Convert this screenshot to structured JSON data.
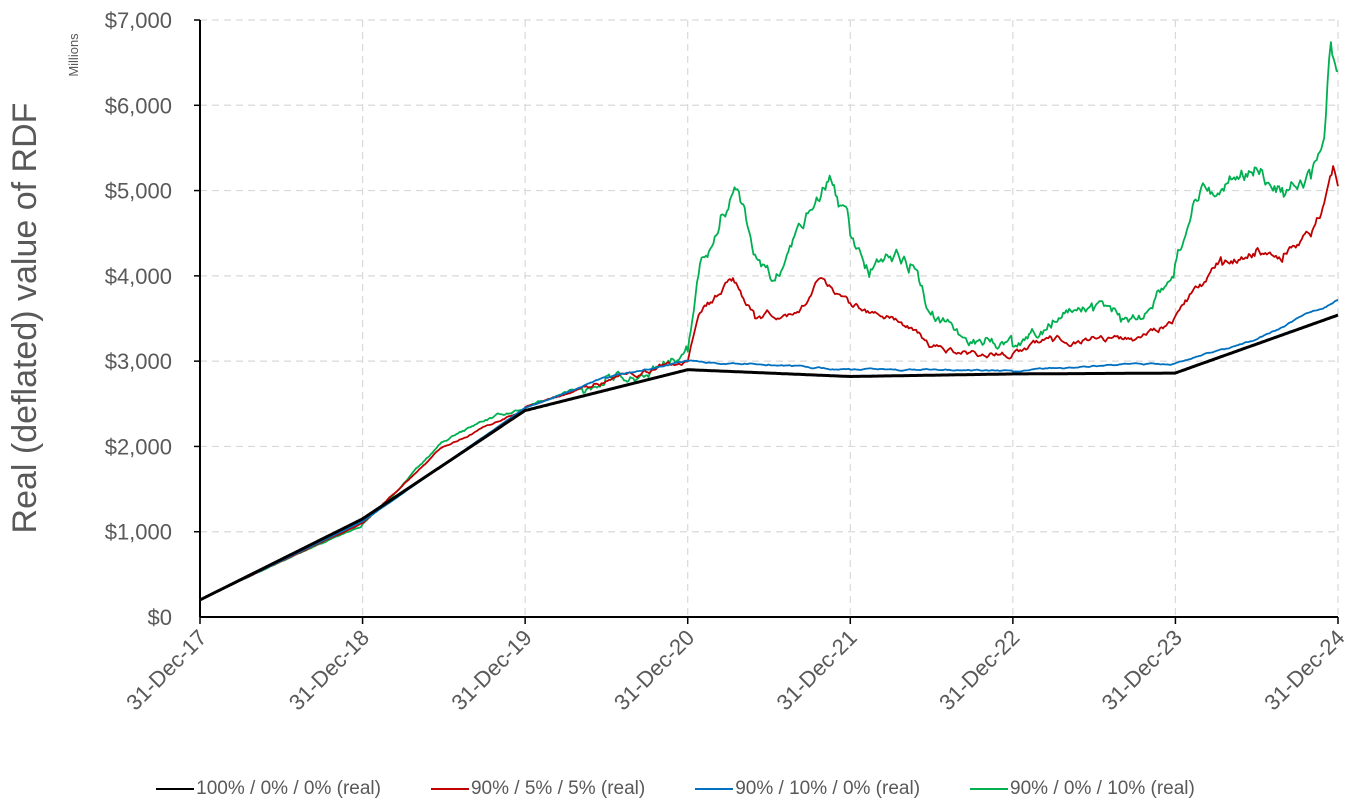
{
  "chart_data": {
    "type": "line",
    "title": "",
    "ylabel": "Real (deflated) value of RDF",
    "y_units_label": "Millions",
    "xlabel": "",
    "x_ticks": [
      "31-Dec-17",
      "31-Dec-18",
      "31-Dec-19",
      "31-Dec-20",
      "31-Dec-21",
      "31-Dec-22",
      "31-Dec-23",
      "31-Dec-24"
    ],
    "x_range": [
      "31-Dec-17",
      "31-Dec-24"
    ],
    "y_ticks": [
      "$0",
      "$1,000",
      "$2,000",
      "$3,000",
      "$4,000",
      "$5,000",
      "$6,000",
      "$7,000"
    ],
    "ylim": [
      0,
      7000
    ],
    "grid": true,
    "legend_position": "bottom",
    "series": [
      {
        "name": "100% / 0% / 0% (real)",
        "color": "#000000",
        "points": [
          [
            "2017-12-31",
            200
          ],
          [
            "2018-12-31",
            1150
          ],
          [
            "2019-12-31",
            2420
          ],
          [
            "2020-12-31",
            2900
          ],
          [
            "2021-12-31",
            2820
          ],
          [
            "2022-12-31",
            2850
          ],
          [
            "2023-12-31",
            2860
          ],
          [
            "2024-12-31",
            3540
          ]
        ]
      },
      {
        "name": "90% / 5% / 5% (real)",
        "color": "#C00000",
        "points": [
          [
            "2017-12-31",
            200
          ],
          [
            "2018-06-30",
            650
          ],
          [
            "2018-12-31",
            1100
          ],
          [
            "2019-06-30",
            2000
          ],
          [
            "2019-12-31",
            2450
          ],
          [
            "2020-06-30",
            2780
          ],
          [
            "2020-12-31",
            3000
          ],
          [
            "2021-01-31",
            3550
          ],
          [
            "2021-04-15",
            3950
          ],
          [
            "2021-05-31",
            3500
          ],
          [
            "2021-08-31",
            3550
          ],
          [
            "2021-10-31",
            4000
          ],
          [
            "2021-12-31",
            3650
          ],
          [
            "2022-02-28",
            3550
          ],
          [
            "2022-04-15",
            3500
          ],
          [
            "2022-06-30",
            3150
          ],
          [
            "2022-09-30",
            3100
          ],
          [
            "2022-12-31",
            3100
          ],
          [
            "2023-03-31",
            3250
          ],
          [
            "2023-06-30",
            3300
          ],
          [
            "2023-09-30",
            3250
          ],
          [
            "2023-12-31",
            3520
          ],
          [
            "2024-02-28",
            3900
          ],
          [
            "2024-04-15",
            4150
          ],
          [
            "2024-06-30",
            4300
          ],
          [
            "2024-08-31",
            4250
          ],
          [
            "2024-10-31",
            4500
          ],
          [
            "2024-11-30",
            4850
          ],
          [
            "2024-12-20",
            5250
          ],
          [
            "2024-12-31",
            5050
          ]
        ]
      },
      {
        "name": "90% / 10% / 0% (real)",
        "color": "#0070C0",
        "points": [
          [
            "2017-12-31",
            200
          ],
          [
            "2018-12-31",
            1120
          ],
          [
            "2019-12-31",
            2450
          ],
          [
            "2020-06-30",
            2800
          ],
          [
            "2020-12-31",
            3000
          ],
          [
            "2021-06-30",
            2960
          ],
          [
            "2021-12-31",
            2900
          ],
          [
            "2022-06-30",
            2900
          ],
          [
            "2022-12-31",
            2880
          ],
          [
            "2023-06-30",
            2940
          ],
          [
            "2023-12-31",
            2970
          ],
          [
            "2024-06-30",
            3250
          ],
          [
            "2024-12-31",
            3720
          ]
        ]
      },
      {
        "name": "90% / 0% / 10% (real)",
        "color": "#00B050",
        "points": [
          [
            "2017-12-31",
            200
          ],
          [
            "2018-06-30",
            650
          ],
          [
            "2018-12-31",
            1080
          ],
          [
            "2019-03-31",
            1550
          ],
          [
            "2019-06-30",
            2050
          ],
          [
            "2019-09-30",
            2300
          ],
          [
            "2019-12-31",
            2450
          ],
          [
            "2020-06-30",
            2800
          ],
          [
            "2020-10-31",
            2900
          ],
          [
            "2020-12-31",
            3150
          ],
          [
            "2021-01-31",
            4200
          ],
          [
            "2021-03-15",
            4700
          ],
          [
            "2021-04-15",
            5050
          ],
          [
            "2021-05-31",
            4200
          ],
          [
            "2021-07-15",
            3900
          ],
          [
            "2021-09-30",
            4700
          ],
          [
            "2021-11-15",
            5100
          ],
          [
            "2021-12-31",
            4500
          ],
          [
            "2022-02-15",
            4050
          ],
          [
            "2022-03-31",
            4250
          ],
          [
            "2022-05-15",
            4100
          ],
          [
            "2022-06-30",
            3500
          ],
          [
            "2022-08-31",
            3300
          ],
          [
            "2022-10-31",
            3250
          ],
          [
            "2022-12-31",
            3200
          ],
          [
            "2023-03-31",
            3500
          ],
          [
            "2023-06-30",
            3600
          ],
          [
            "2023-08-31",
            3500
          ],
          [
            "2023-10-31",
            3600
          ],
          [
            "2023-12-31",
            4100
          ],
          [
            "2024-02-28",
            5100
          ],
          [
            "2024-04-15",
            5000
          ],
          [
            "2024-06-30",
            5300
          ],
          [
            "2024-08-31",
            5000
          ],
          [
            "2024-10-31",
            5200
          ],
          [
            "2024-11-30",
            5600
          ],
          [
            "2024-12-15",
            6800
          ],
          [
            "2024-12-31",
            6400
          ]
        ]
      }
    ]
  }
}
